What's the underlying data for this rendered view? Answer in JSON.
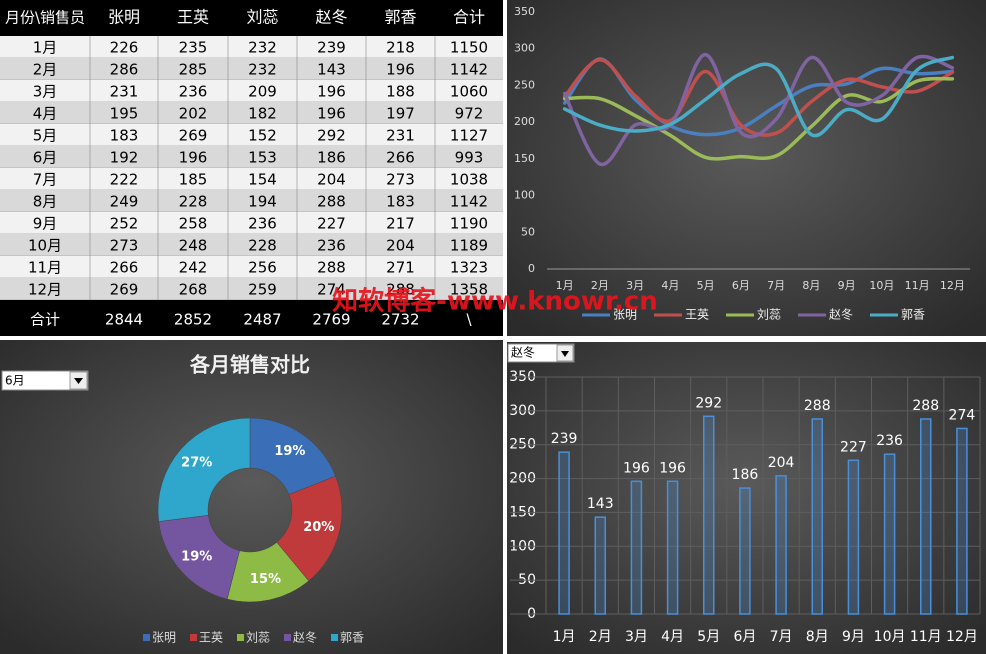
{
  "table": {
    "header": [
      "月份\\销售员",
      "张明",
      "王英",
      "刘蕊",
      "赵冬",
      "郭香",
      "合计"
    ],
    "rows": [
      [
        "1月",
        226,
        235,
        232,
        239,
        218,
        1150
      ],
      [
        "2月",
        286,
        285,
        232,
        143,
        196,
        1142
      ],
      [
        "3月",
        231,
        236,
        209,
        196,
        188,
        1060
      ],
      [
        "4月",
        195,
        202,
        182,
        196,
        197,
        972
      ],
      [
        "5月",
        183,
        269,
        152,
        292,
        231,
        1127
      ],
      [
        "6月",
        192,
        196,
        153,
        186,
        266,
        993
      ],
      [
        "7月",
        222,
        185,
        154,
        204,
        273,
        1038
      ],
      [
        "8月",
        249,
        228,
        194,
        288,
        183,
        1142
      ],
      [
        "9月",
        252,
        258,
        236,
        227,
        217,
        1190
      ],
      [
        "10月",
        273,
        248,
        228,
        236,
        204,
        1189
      ],
      [
        "11月",
        266,
        242,
        256,
        288,
        271,
        1323
      ],
      [
        "12月",
        269,
        268,
        259,
        274,
        288,
        1358
      ]
    ],
    "footer": [
      "合计",
      2844,
      2852,
      2487,
      2769,
      2732,
      "\\"
    ]
  },
  "watermark": "知软博客-www.knowr.cn",
  "chart_data": [
    {
      "type": "line",
      "categories": [
        "1月",
        "2月",
        "3月",
        "4月",
        "5月",
        "6月",
        "7月",
        "8月",
        "9月",
        "10月",
        "11月",
        "12月"
      ],
      "series": [
        {
          "name": "张明",
          "color": "#4a7fc1",
          "values": [
            226,
            286,
            231,
            195,
            183,
            192,
            222,
            249,
            252,
            273,
            266,
            269
          ]
        },
        {
          "name": "王英",
          "color": "#c0504d",
          "values": [
            235,
            285,
            236,
            202,
            269,
            196,
            185,
            228,
            258,
            248,
            242,
            268
          ]
        },
        {
          "name": "刘蕊",
          "color": "#9bbb59",
          "values": [
            232,
            232,
            209,
            182,
            152,
            153,
            154,
            194,
            236,
            228,
            256,
            259
          ]
        },
        {
          "name": "赵冬",
          "color": "#8064a2",
          "values": [
            239,
            143,
            196,
            196,
            292,
            186,
            204,
            288,
            227,
            236,
            288,
            274
          ]
        },
        {
          "name": "郭香",
          "color": "#4bacc6",
          "values": [
            218,
            196,
            188,
            197,
            231,
            266,
            273,
            183,
            217,
            204,
            271,
            288
          ]
        }
      ],
      "ylim": [
        0,
        350
      ],
      "yticks": [
        0,
        50,
        100,
        150,
        200,
        250,
        300,
        350
      ],
      "grid": false,
      "smooth": true,
      "legend": "bottom"
    },
    {
      "type": "pie",
      "title": "各月销售对比",
      "selector": "6月",
      "categories": [
        "张明",
        "王英",
        "刘蕊",
        "赵冬",
        "郭香"
      ],
      "colors": [
        "#3a6fb8",
        "#c0393b",
        "#8dbb45",
        "#7455a0",
        "#2fa6cc"
      ],
      "values": [
        19,
        20,
        15,
        19,
        27
      ],
      "value_labels": [
        "19%",
        "20%",
        "15%",
        "19%",
        "27%"
      ],
      "legend": "bottom"
    },
    {
      "type": "bar",
      "selector": "赵冬",
      "categories": [
        "1月",
        "2月",
        "3月",
        "4月",
        "5月",
        "6月",
        "7月",
        "8月",
        "9月",
        "10月",
        "11月",
        "12月"
      ],
      "values": [
        239,
        143,
        196,
        196,
        292,
        186,
        204,
        288,
        227,
        236,
        288,
        274
      ],
      "color": "#4a8fd8",
      "ylim": [
        0,
        350
      ],
      "yticks": [
        0,
        50,
        100,
        150,
        200,
        250,
        300,
        350
      ],
      "grid": true
    }
  ]
}
